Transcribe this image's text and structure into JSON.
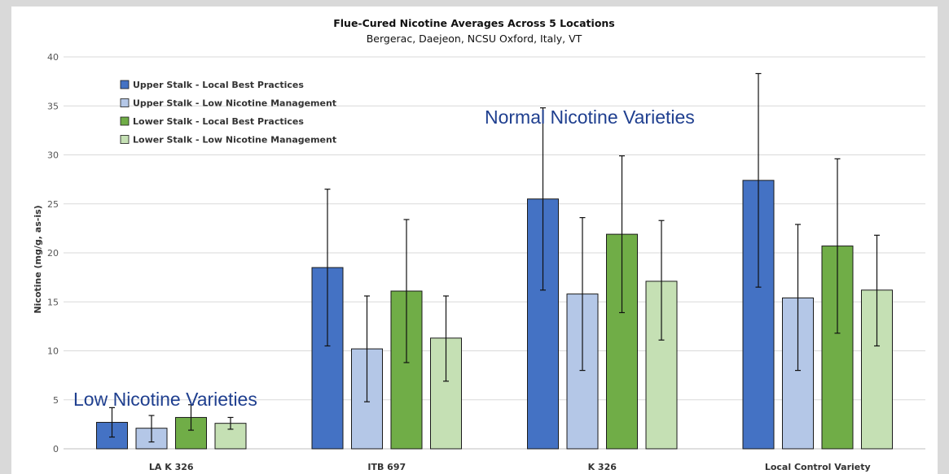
{
  "chart_data": {
    "type": "bar",
    "title": "Flue-Cured Nicotine Averages Across 5 Locations",
    "subtitle": "Bergerac, Daejeon, NCSU Oxford, Italy, VT",
    "xlabel": "",
    "ylabel": "Nicotine (mg/g, as-is)",
    "ylim": [
      0,
      40
    ],
    "yticks": [
      0,
      5,
      10,
      15,
      20,
      25,
      30,
      35,
      40
    ],
    "grid": true,
    "legend_position": "top-left",
    "categories": [
      "LA K 326",
      "ITB 697",
      "K 326",
      "Local Control Variety"
    ],
    "series": [
      {
        "name": "Upper Stalk - Local Best Practices",
        "color": "#4472c4",
        "values": [
          2.7,
          18.5,
          25.5,
          27.4
        ],
        "error_low": [
          1.2,
          10.5,
          16.2,
          16.5
        ],
        "error_high": [
          4.2,
          26.5,
          34.8,
          38.3
        ]
      },
      {
        "name": "Upper Stalk - Low Nicotine Management",
        "color": "#b4c7e7",
        "values": [
          2.1,
          10.2,
          15.8,
          15.4
        ],
        "error_low": [
          0.7,
          4.8,
          8.0,
          8.0
        ],
        "error_high": [
          3.4,
          15.6,
          23.6,
          22.9
        ]
      },
      {
        "name": "Lower Stalk - Local Best Practices",
        "color": "#70ad47",
        "values": [
          3.2,
          16.1,
          21.9,
          20.7
        ],
        "error_low": [
          1.9,
          8.8,
          13.9,
          11.8
        ],
        "error_high": [
          4.5,
          23.4,
          29.9,
          29.6
        ]
      },
      {
        "name": "Lower Stalk - Low Nicotine Management",
        "color": "#c5e0b4",
        "values": [
          2.6,
          11.3,
          17.1,
          16.2
        ],
        "error_low": [
          2.0,
          6.9,
          11.1,
          10.5
        ],
        "error_high": [
          3.2,
          15.6,
          23.3,
          21.8
        ]
      }
    ],
    "annotations": [
      "Low Nicotine Varieties",
      "Normal Nicotine Varieties"
    ],
    "annotation_color": "#1f3f8f"
  }
}
